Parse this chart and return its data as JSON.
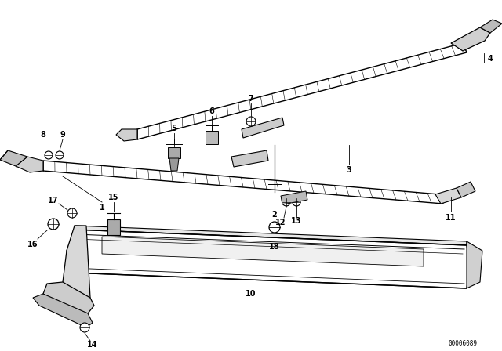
{
  "bg_color": "#ffffff",
  "line_color": "#000000",
  "watermark": "00006089",
  "figsize": [
    6.4,
    4.48
  ],
  "dpi": 100,
  "xlim": [
    0,
    640
  ],
  "ylim": [
    0,
    448
  ]
}
